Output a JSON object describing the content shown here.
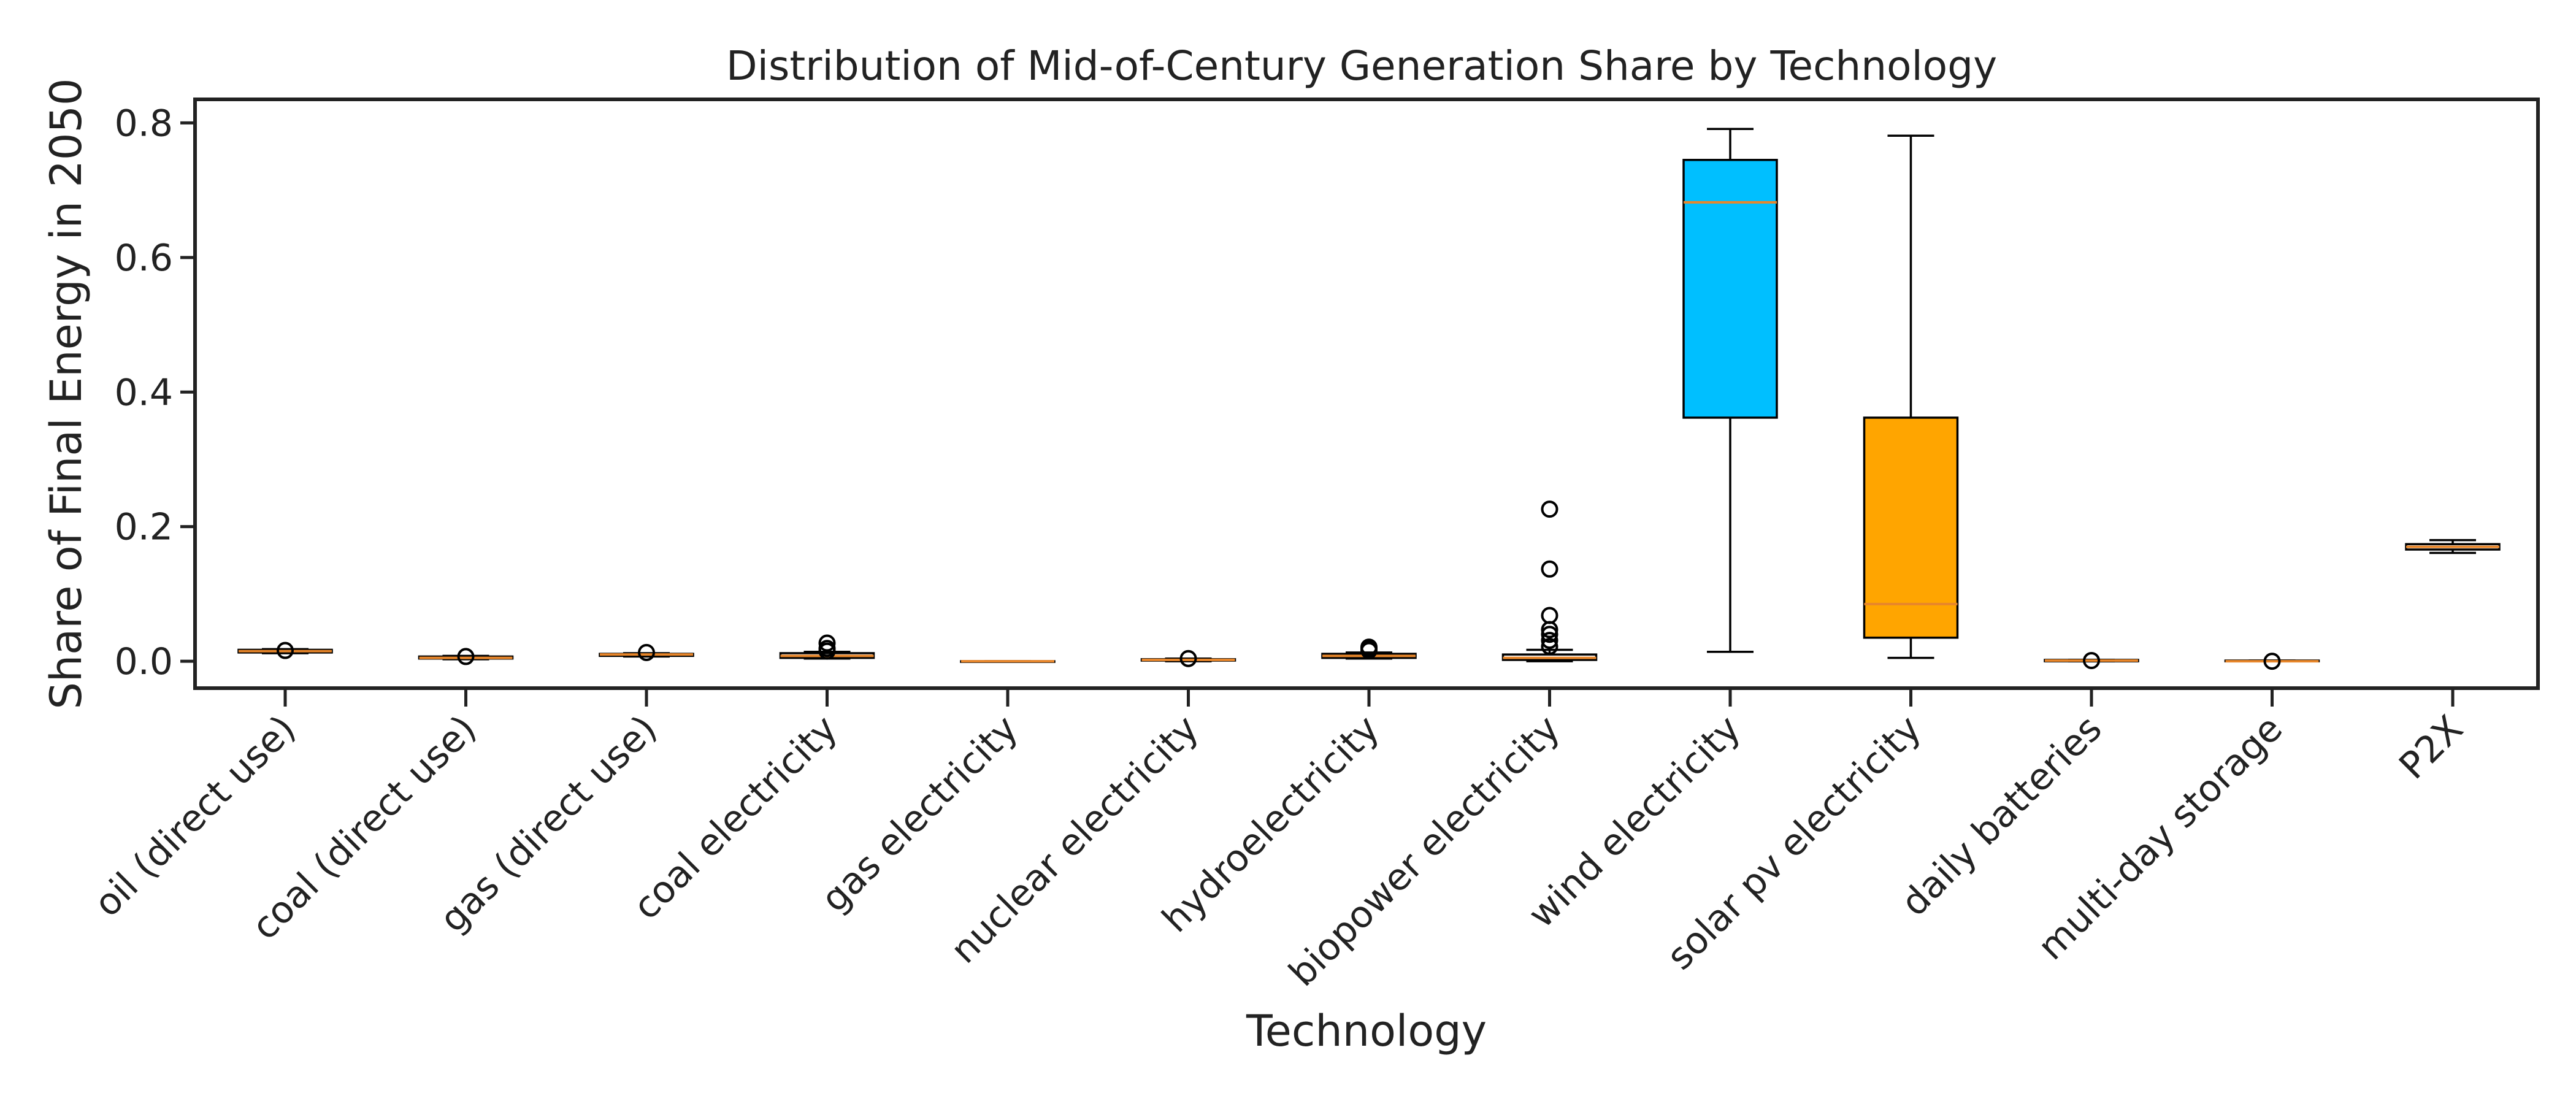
{
  "chart_data": {
    "type": "box",
    "title": "Distribution of Mid-of-Century Generation Share by Technology",
    "xlabel": "Technology",
    "ylabel": "Share of Final Energy in 2050",
    "ylim": [
      -0.04,
      0.835
    ],
    "yticks": [
      0.0,
      0.2,
      0.4,
      0.6,
      0.8
    ],
    "grid": false,
    "median_color": "#e8862a",
    "categories": [
      {
        "label": "oil (direct use)",
        "q1": 0.013,
        "median": 0.015,
        "q3": 0.017,
        "whisker_low": 0.012,
        "whisker_high": 0.018,
        "color": "#ffffff",
        "outliers": [
          0.016
        ]
      },
      {
        "label": "coal (direct use)",
        "q1": 0.004,
        "median": 0.005,
        "q3": 0.007,
        "whisker_low": 0.003,
        "whisker_high": 0.008,
        "color": "#ffffff",
        "outliers": [
          0.007
        ]
      },
      {
        "label": "gas (direct use)",
        "q1": 0.008,
        "median": 0.01,
        "q3": 0.011,
        "whisker_low": 0.007,
        "whisker_high": 0.012,
        "color": "#ffffff",
        "outliers": [
          0.013
        ]
      },
      {
        "label": "coal electricity",
        "q1": 0.005,
        "median": 0.008,
        "q3": 0.012,
        "whisker_low": 0.004,
        "whisker_high": 0.014,
        "color": "#ffffff",
        "outliers": [
          0.015,
          0.019,
          0.027
        ]
      },
      {
        "label": "gas electricity",
        "q1": 0.0,
        "median": 0.0,
        "q3": 0.0,
        "whisker_low": 0.0,
        "whisker_high": 0.0,
        "color": "#ffffff",
        "outliers": []
      },
      {
        "label": "nuclear electricity",
        "q1": 0.001,
        "median": 0.002,
        "q3": 0.003,
        "whisker_low": 0.0,
        "whisker_high": 0.004,
        "color": "#ffffff",
        "outliers": [
          0.004
        ]
      },
      {
        "label": "hydroelectricity",
        "q1": 0.005,
        "median": 0.008,
        "q3": 0.011,
        "whisker_low": 0.004,
        "whisker_high": 0.013,
        "color": "#ffffff",
        "outliers": [
          0.016,
          0.019,
          0.021
        ]
      },
      {
        "label": "biopower electricity",
        "q1": 0.002,
        "median": 0.005,
        "q3": 0.01,
        "whisker_low": 0.0,
        "whisker_high": 0.017,
        "color": "#ffffff",
        "outliers": [
          0.022,
          0.031,
          0.04,
          0.047,
          0.068,
          0.137,
          0.226
        ]
      },
      {
        "label": "wind electricity",
        "q1": 0.362,
        "median": 0.682,
        "q3": 0.745,
        "whisker_low": 0.014,
        "whisker_high": 0.791,
        "color": "#00bfff",
        "outliers": []
      },
      {
        "label": "solar pv electricity",
        "q1": 0.035,
        "median": 0.085,
        "q3": 0.362,
        "whisker_low": 0.005,
        "whisker_high": 0.781,
        "color": "#ffa500",
        "outliers": []
      },
      {
        "label": "daily batteries",
        "q1": 0.0,
        "median": 0.001,
        "q3": 0.002,
        "whisker_low": 0.0,
        "whisker_high": 0.002,
        "color": "#ffffff",
        "outliers": [
          0.001
        ]
      },
      {
        "label": "multi-day storage",
        "q1": 0.0,
        "median": 0.0,
        "q3": 0.001,
        "whisker_low": 0.0,
        "whisker_high": 0.001,
        "color": "#ffffff",
        "outliers": [
          0.0
        ]
      },
      {
        "label": "P2X",
        "q1": 0.166,
        "median": 0.17,
        "q3": 0.174,
        "whisker_low": 0.161,
        "whisker_high": 0.18,
        "color": "#ffffff",
        "outliers": []
      }
    ]
  }
}
